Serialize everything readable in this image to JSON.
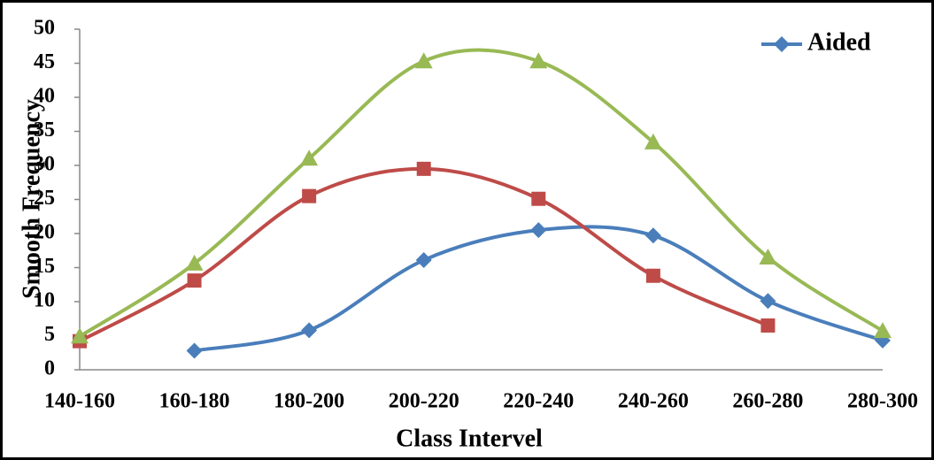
{
  "chart_data": {
    "type": "line",
    "x_label": "Class Intervel",
    "y_label": "Smooth Frequency",
    "categories": [
      "140-160",
      "160-180",
      "180-200",
      "200-220",
      "220-240",
      "240-260",
      "260-280",
      "280-300"
    ],
    "series": [
      {
        "name": "Aided",
        "color": "#4a7ebb",
        "marker": "diamond",
        "values": [
          null,
          2.8,
          5.8,
          16.1,
          20.5,
          19.7,
          10.1,
          4.3
        ]
      },
      {
        "color": "#be4b48",
        "marker": "square",
        "values": [
          4.2,
          13.1,
          25.5,
          29.5,
          25.1,
          13.8,
          6.5,
          null
        ]
      },
      {
        "color": "#98b954",
        "marker": "triangle",
        "values": [
          4.9,
          15.6,
          31.0,
          45.3,
          45.3,
          33.4,
          16.5,
          5.7
        ]
      }
    ],
    "ylim": [
      0,
      50
    ],
    "yticks": [
      0,
      5,
      10,
      15,
      20,
      25,
      30,
      35,
      40,
      45,
      50
    ],
    "smooth": true,
    "grid": false,
    "legend": "top-right"
  }
}
